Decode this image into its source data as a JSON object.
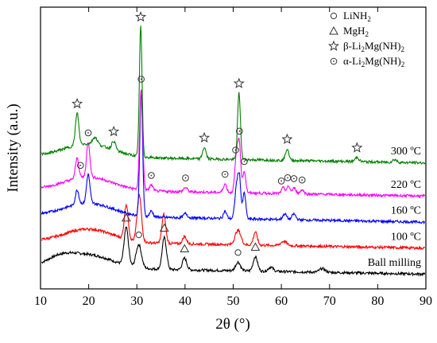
{
  "chart_data": {
    "type": "line",
    "title": "",
    "xlabel": "2θ (°)",
    "ylabel": "Intensity (a.u.)",
    "xlim": [
      10,
      90
    ],
    "x_ticks": [
      10,
      20,
      30,
      40,
      50,
      60,
      70,
      80,
      90
    ],
    "y_ticks_shown": false,
    "series": [
      {
        "name": "Ball milling",
        "color": "#000000",
        "baseline": 0.5,
        "peaks": [
          {
            "x": 27.8,
            "h": 2.6,
            "w": 0.45
          },
          {
            "x": 30.4,
            "h": 1.6,
            "w": 0.55
          },
          {
            "x": 35.7,
            "h": 2.2,
            "w": 0.45
          },
          {
            "x": 39.9,
            "h": 0.8,
            "w": 0.45
          },
          {
            "x": 51.0,
            "h": 0.6,
            "w": 0.5
          },
          {
            "x": 54.6,
            "h": 1.0,
            "w": 0.45
          },
          {
            "x": 57.8,
            "h": 0.3,
            "w": 0.5
          },
          {
            "x": 68.5,
            "h": 0.25,
            "w": 0.6
          }
        ]
      },
      {
        "name": "100 °C",
        "color": "#ff0000",
        "baseline": 2.3,
        "peaks": [
          {
            "x": 27.8,
            "h": 2.4,
            "w": 0.4
          },
          {
            "x": 30.5,
            "h": 3.2,
            "w": 0.45
          },
          {
            "x": 35.6,
            "h": 2.0,
            "w": 0.4
          },
          {
            "x": 39.9,
            "h": 0.5,
            "w": 0.4
          },
          {
            "x": 51.0,
            "h": 1.0,
            "w": 0.6
          },
          {
            "x": 54.6,
            "h": 0.9,
            "w": 0.4
          },
          {
            "x": 60.5,
            "h": 0.3,
            "w": 0.6
          }
        ]
      },
      {
        "name": "160 °C",
        "color": "#0000ff",
        "baseline": 4.1,
        "peaks": [
          {
            "x": 17.6,
            "h": 1.0,
            "w": 0.35
          },
          {
            "x": 19.9,
            "h": 2.0,
            "w": 0.35
          },
          {
            "x": 30.9,
            "h": 8.5,
            "w": 0.3
          },
          {
            "x": 33.0,
            "h": 0.4,
            "w": 0.35
          },
          {
            "x": 40.1,
            "h": 0.3,
            "w": 0.4
          },
          {
            "x": 48.3,
            "h": 0.5,
            "w": 0.35
          },
          {
            "x": 50.7,
            "h": 2.2,
            "w": 0.35
          },
          {
            "x": 51.3,
            "h": 2.6,
            "w": 0.3
          },
          {
            "x": 52.3,
            "h": 1.8,
            "w": 0.3
          },
          {
            "x": 60.7,
            "h": 0.4,
            "w": 0.4
          },
          {
            "x": 62.6,
            "h": 0.4,
            "w": 0.4
          }
        ]
      },
      {
        "name": "220 °C",
        "color": "#ff00ff",
        "baseline": 5.9,
        "peaks": [
          {
            "x": 17.6,
            "h": 1.4,
            "w": 0.35
          },
          {
            "x": 19.9,
            "h": 2.4,
            "w": 0.35
          },
          {
            "x": 30.9,
            "h": 7.0,
            "w": 0.32
          },
          {
            "x": 33.0,
            "h": 0.4,
            "w": 0.35
          },
          {
            "x": 40.1,
            "h": 0.3,
            "w": 0.4
          },
          {
            "x": 48.3,
            "h": 0.6,
            "w": 0.35
          },
          {
            "x": 50.7,
            "h": 2.6,
            "w": 0.35
          },
          {
            "x": 51.3,
            "h": 3.0,
            "w": 0.3
          },
          {
            "x": 52.3,
            "h": 1.5,
            "w": 0.3
          },
          {
            "x": 60.4,
            "h": 0.4,
            "w": 0.35
          },
          {
            "x": 61.5,
            "h": 0.5,
            "w": 0.35
          },
          {
            "x": 62.7,
            "h": 0.4,
            "w": 0.35
          },
          {
            "x": 64.3,
            "h": 0.3,
            "w": 0.35
          }
        ]
      },
      {
        "name": "300 °C",
        "color": "#008000",
        "baseline": 8.2,
        "peaks": [
          {
            "x": 17.6,
            "h": 2.2,
            "w": 0.35
          },
          {
            "x": 21.3,
            "h": 0.5,
            "w": 0.5
          },
          {
            "x": 25.2,
            "h": 0.6,
            "w": 0.4
          },
          {
            "x": 30.8,
            "h": 9.0,
            "w": 0.28
          },
          {
            "x": 44.0,
            "h": 0.8,
            "w": 0.35
          },
          {
            "x": 51.2,
            "h": 4.6,
            "w": 0.3
          },
          {
            "x": 61.2,
            "h": 0.8,
            "w": 0.35
          },
          {
            "x": 75.7,
            "h": 0.3,
            "w": 0.4
          },
          {
            "x": 83.5,
            "h": 0.2,
            "w": 0.4
          }
        ]
      }
    ],
    "series_labels": [
      {
        "text": "300 ºC"
      },
      {
        "text": "220 ºC"
      },
      {
        "text": "160 ºC"
      },
      {
        "text": "100 ºC"
      },
      {
        "text": "Ball milling"
      }
    ],
    "legend": {
      "placement": "top-right",
      "entries": [
        {
          "symbol": "circle",
          "label": "LiNH",
          "sub": "2",
          "rest": ""
        },
        {
          "symbol": "triangle",
          "label": "MgH",
          "sub": "2",
          "rest": ""
        },
        {
          "symbol": "star",
          "label": "β-Li",
          "sub": "2",
          "rest": "Mg(NH)",
          "sub2": "2"
        },
        {
          "symbol": "dotted-circle",
          "label": "α-Li",
          "sub": "2",
          "rest": "Mg(NH)",
          "sub2": "2"
        }
      ]
    },
    "markers": [
      {
        "symbol": "triangle",
        "x": 27.8,
        "series": 0
      },
      {
        "symbol": "circle",
        "x": 30.4,
        "series": 0
      },
      {
        "symbol": "triangle",
        "x": 35.7,
        "series": 0
      },
      {
        "symbol": "triangle",
        "x": 39.9,
        "series": 0
      },
      {
        "symbol": "circle",
        "x": 51.0,
        "series": 0
      },
      {
        "symbol": "triangle",
        "x": 54.6,
        "series": 0
      },
      {
        "symbol": "dotted-circle",
        "x": 18.3,
        "series": 3
      },
      {
        "symbol": "dotted-circle",
        "x": 19.9,
        "series": 3
      },
      {
        "symbol": "dotted-circle",
        "x": 30.9,
        "series": 3
      },
      {
        "symbol": "dotted-circle",
        "x": 33.0,
        "series": 3
      },
      {
        "symbol": "dotted-circle",
        "x": 40.1,
        "series": 3
      },
      {
        "symbol": "dotted-circle",
        "x": 48.3,
        "series": 3
      },
      {
        "symbol": "dotted-circle",
        "x": 50.5,
        "series": 3
      },
      {
        "symbol": "dotted-circle",
        "x": 51.3,
        "series": 3
      },
      {
        "symbol": "dotted-circle",
        "x": 52.3,
        "series": 3
      },
      {
        "symbol": "dotted-circle",
        "x": 60.0,
        "series": 3
      },
      {
        "symbol": "dotted-circle",
        "x": 61.3,
        "series": 3
      },
      {
        "symbol": "dotted-circle",
        "x": 62.6,
        "series": 3
      },
      {
        "symbol": "dotted-circle",
        "x": 64.3,
        "series": 3
      },
      {
        "symbol": "star",
        "x": 17.6,
        "series": 4
      },
      {
        "symbol": "star",
        "x": 25.2,
        "series": 4
      },
      {
        "symbol": "star",
        "x": 30.8,
        "series": 4
      },
      {
        "symbol": "star",
        "x": 44.0,
        "series": 4
      },
      {
        "symbol": "star",
        "x": 51.2,
        "series": 4
      },
      {
        "symbol": "star",
        "x": 61.2,
        "series": 4
      },
      {
        "symbol": "star",
        "x": 75.7,
        "series": 4
      }
    ]
  }
}
